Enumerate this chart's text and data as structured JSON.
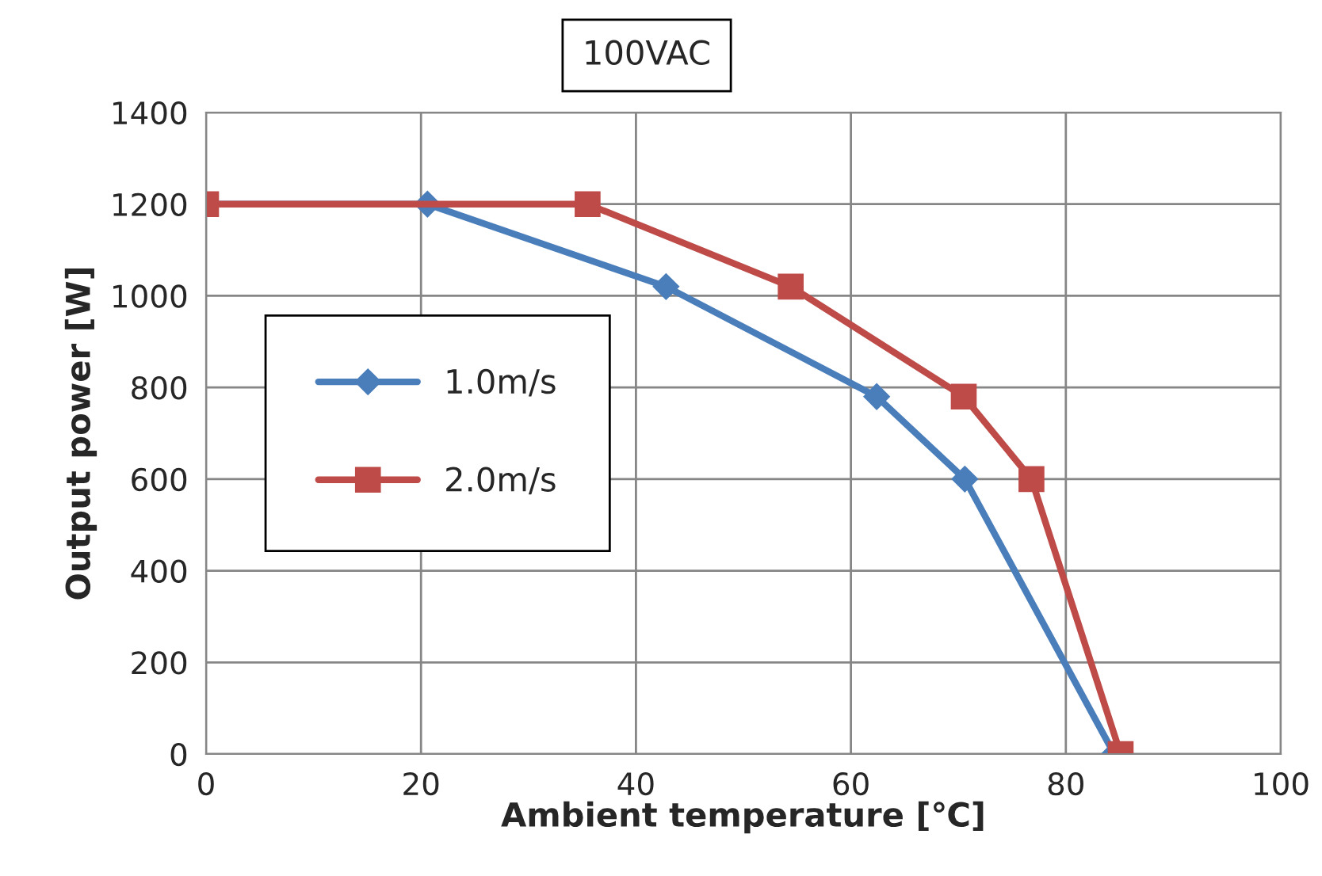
{
  "chart_data": {
    "type": "line",
    "title": "100VAC",
    "xlabel": "Ambient temperature [℃]",
    "ylabel": "Output power [W]",
    "xlim": [
      0,
      100
    ],
    "xticks": [
      0,
      20,
      40,
      60,
      80,
      100
    ],
    "ylim": [
      0,
      1400
    ],
    "yticks": [
      0,
      200,
      400,
      600,
      800,
      1000,
      1200,
      1400
    ],
    "grid": true,
    "legend": "left",
    "series": [
      {
        "name": "1.0m/s",
        "color": "#4a7ebb",
        "marker": "diamond",
        "x": [
          0,
          20.6,
          42.8,
          62.4,
          70.6,
          84.5
        ],
        "values": [
          1200,
          1200,
          1020,
          780,
          600,
          0
        ]
      },
      {
        "name": "2.0m/s",
        "color": "#be4b48",
        "marker": "square",
        "x": [
          0,
          35.5,
          54.4,
          70.5,
          76.8,
          85.1
        ],
        "values": [
          1200,
          1200,
          1020,
          780,
          600,
          0
        ]
      }
    ]
  }
}
